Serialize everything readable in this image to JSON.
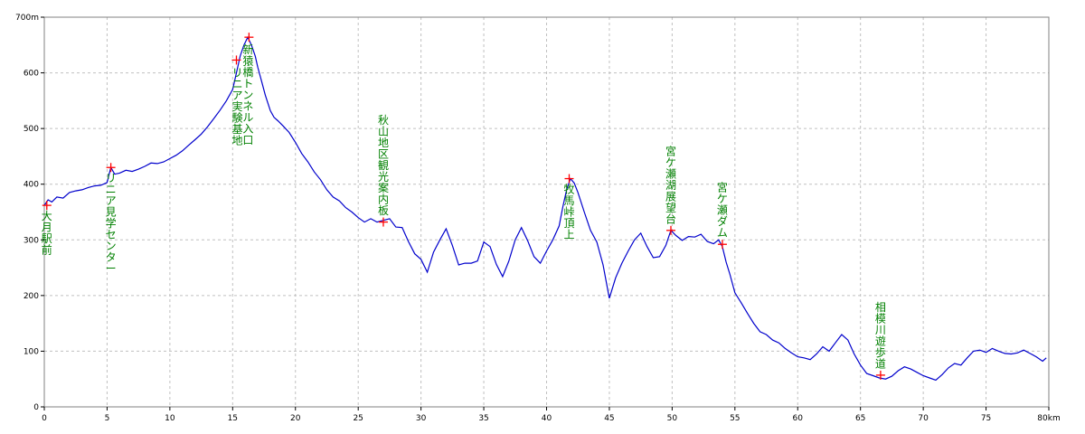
{
  "chart_data": {
    "type": "line",
    "title": "",
    "xlabel": "",
    "ylabel": "",
    "x_unit": "km",
    "y_unit": "m",
    "xlim": [
      0,
      80
    ],
    "ylim": [
      0,
      700
    ],
    "x_ticks": [
      0,
      5,
      10,
      15,
      20,
      25,
      30,
      35,
      40,
      45,
      50,
      55,
      60,
      65,
      70,
      75,
      80
    ],
    "y_ticks": [
      0,
      100,
      200,
      300,
      400,
      500,
      600,
      700
    ],
    "x_tick_labels": [
      "0",
      "5",
      "10",
      "15",
      "20",
      "25",
      "30",
      "35",
      "40",
      "45",
      "50",
      "55",
      "60",
      "65",
      "70",
      "75",
      "80km"
    ],
    "y_tick_labels": [
      "0",
      "100",
      "200",
      "300",
      "400",
      "500",
      "600",
      "700m"
    ],
    "grid": true,
    "line_color": "#0000cc",
    "marker_color": "#ff0000",
    "label_color": "#008000",
    "series": [
      {
        "x": [
          0,
          0.3,
          0.6,
          1,
          1.5,
          2,
          2.5,
          3,
          3.5,
          4,
          4.5,
          5,
          5.3,
          5.6,
          6,
          6.5,
          7,
          7.5,
          8,
          8.5,
          9,
          9.5,
          10,
          10.5,
          11,
          11.5,
          12,
          12.5,
          13,
          13.5,
          14,
          14.5,
          15,
          15.3,
          15.6,
          15.9,
          16.2,
          16.5,
          16.8,
          17,
          17.3,
          17.6,
          18,
          18.3,
          18.6,
          19,
          19.5,
          20,
          20.5,
          21,
          21.5,
          22,
          22.5,
          23,
          23.5,
          24,
          24.5,
          25,
          25.5,
          26,
          26.5,
          27,
          27.5,
          28,
          28.5,
          29,
          29.5,
          30,
          30.5,
          31,
          31.5,
          32,
          32.5,
          33,
          33.5,
          34,
          34.5,
          35,
          35.5,
          36,
          36.5,
          37,
          37.5,
          38,
          38.5,
          39,
          39.5,
          40,
          40.5,
          41,
          41.3,
          41.6,
          41.9,
          42.2,
          42.5,
          43,
          43.5,
          44,
          44.5,
          45,
          45.5,
          46,
          46.5,
          47,
          47.5,
          48,
          48.5,
          49,
          49.5,
          49.9,
          50.3,
          50.8,
          51.3,
          51.8,
          52.3,
          52.8,
          53.3,
          53.7,
          54,
          54.3,
          54.6,
          55,
          55.5,
          56,
          56.5,
          57,
          57.5,
          58,
          58.5,
          59,
          59.5,
          60,
          60.5,
          61,
          61.5,
          62,
          62.5,
          63,
          63.5,
          64,
          64.5,
          65,
          65.5,
          66,
          66.5,
          67,
          67.5,
          68,
          68.5,
          69,
          69.5,
          70,
          70.5,
          71,
          71.5,
          72,
          72.5,
          73,
          73.5,
          74,
          74.5,
          75,
          75.5,
          76,
          76.5,
          77,
          77.5,
          78,
          78.5,
          79,
          79.5,
          79.8
        ],
        "y": [
          362,
          372,
          368,
          377,
          375,
          385,
          388,
          390,
          394,
          397,
          398,
          403,
          430,
          418,
          420,
          425,
          423,
          427,
          432,
          438,
          437,
          440,
          446,
          452,
          460,
          470,
          480,
          490,
          503,
          518,
          533,
          550,
          570,
          600,
          630,
          650,
          664,
          650,
          630,
          610,
          585,
          560,
          532,
          520,
          514,
          505,
          493,
          475,
          455,
          440,
          422,
          408,
          390,
          377,
          370,
          358,
          350,
          340,
          332,
          338,
          332,
          335,
          338,
          323,
          322,
          297,
          275,
          265,
          242,
          278,
          300,
          320,
          290,
          255,
          258,
          258,
          262,
          296,
          288,
          256,
          234,
          262,
          300,
          322,
          298,
          270,
          258,
          280,
          300,
          325,
          360,
          390,
          410,
          402,
          385,
          350,
          317,
          296,
          255,
          195,
          232,
          258,
          280,
          300,
          312,
          288,
          268,
          270,
          290,
          317,
          308,
          299,
          306,
          305,
          310,
          297,
          293,
          300,
          288,
          260,
          238,
          205,
          187,
          168,
          150,
          135,
          130,
          120,
          115,
          105,
          97,
          90,
          88,
          85,
          95,
          108,
          100,
          115,
          130,
          120,
          95,
          75,
          60,
          56,
          52,
          50,
          55,
          65,
          72,
          68,
          62,
          56,
          52,
          48,
          58,
          70,
          78,
          75,
          88,
          100,
          102,
          98,
          105,
          100,
          96,
          95,
          97,
          102,
          96,
          90,
          82,
          88
        ]
      }
    ],
    "waypoints": [
      {
        "x": 0.2,
        "y": 362,
        "label": "大月駅前"
      },
      {
        "x": 5.3,
        "y": 430,
        "label": "リニア見学センター"
      },
      {
        "x": 15.3,
        "y": 623,
        "label": "リニア実験基地"
      },
      {
        "x": 16.3,
        "y": 664,
        "label": "新猿橋トンネル入口"
      },
      {
        "x": 27,
        "y": 332,
        "label": "秋山地区観光案内板"
      },
      {
        "x": 41.8,
        "y": 410,
        "label": "牧馬峠頂上"
      },
      {
        "x": 49.9,
        "y": 317,
        "label": "宮ケ瀬湖展望台"
      },
      {
        "x": 54,
        "y": 292,
        "label": "宮ケ瀬ダム"
      },
      {
        "x": 66.6,
        "y": 57,
        "label": "相模川遊歩道"
      }
    ]
  }
}
